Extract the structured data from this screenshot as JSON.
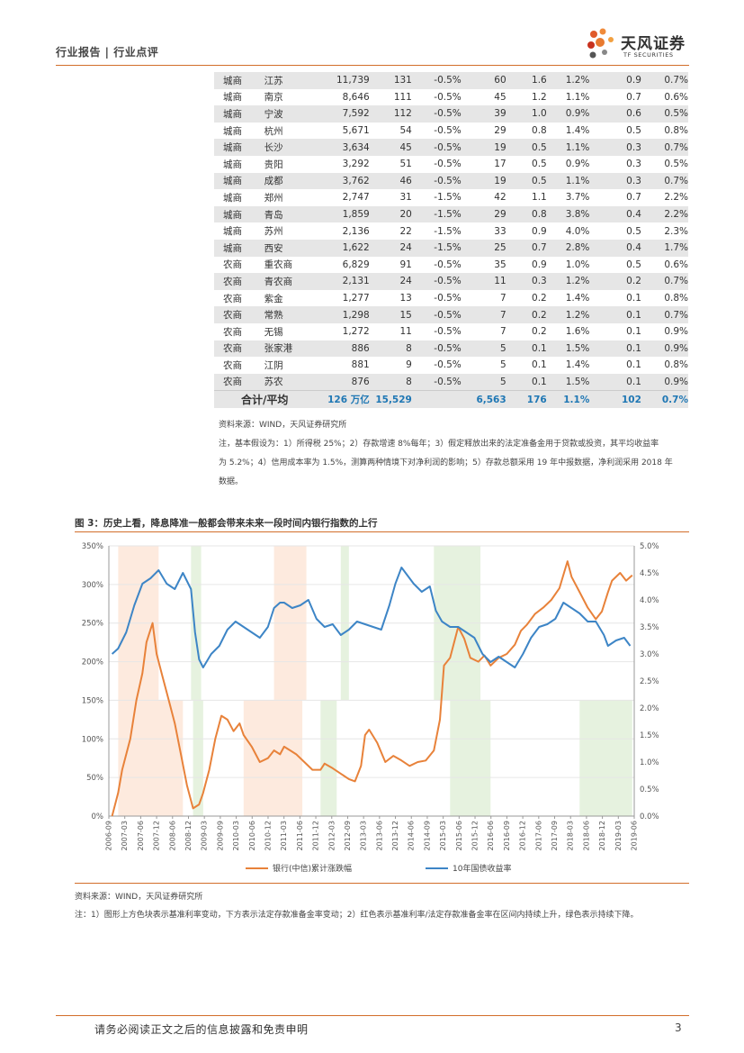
{
  "header": {
    "title": "行业报告 | 行业点评",
    "logo_cn": "天风证券",
    "logo_en": "TF SECURITIES"
  },
  "table": {
    "rows": [
      [
        "城商",
        "江苏",
        "11,739",
        "131",
        "-0.5%",
        "60",
        "1.6",
        "1.2%",
        "0.9",
        "0.7%"
      ],
      [
        "城商",
        "南京",
        "8,646",
        "111",
        "-0.5%",
        "45",
        "1.2",
        "1.1%",
        "0.7",
        "0.6%"
      ],
      [
        "城商",
        "宁波",
        "7,592",
        "112",
        "-0.5%",
        "39",
        "1.0",
        "0.9%",
        "0.6",
        "0.5%"
      ],
      [
        "城商",
        "杭州",
        "5,671",
        "54",
        "-0.5%",
        "29",
        "0.8",
        "1.4%",
        "0.5",
        "0.8%"
      ],
      [
        "城商",
        "长沙",
        "3,634",
        "45",
        "-0.5%",
        "19",
        "0.5",
        "1.1%",
        "0.3",
        "0.7%"
      ],
      [
        "城商",
        "贵阳",
        "3,292",
        "51",
        "-0.5%",
        "17",
        "0.5",
        "0.9%",
        "0.3",
        "0.5%"
      ],
      [
        "城商",
        "成都",
        "3,762",
        "46",
        "-0.5%",
        "19",
        "0.5",
        "1.1%",
        "0.3",
        "0.7%"
      ],
      [
        "城商",
        "郑州",
        "2,747",
        "31",
        "-1.5%",
        "42",
        "1.1",
        "3.7%",
        "0.7",
        "2.2%"
      ],
      [
        "城商",
        "青岛",
        "1,859",
        "20",
        "-1.5%",
        "29",
        "0.8",
        "3.8%",
        "0.4",
        "2.2%"
      ],
      [
        "城商",
        "苏州",
        "2,136",
        "22",
        "-1.5%",
        "33",
        "0.9",
        "4.0%",
        "0.5",
        "2.3%"
      ],
      [
        "城商",
        "西安",
        "1,622",
        "24",
        "-1.5%",
        "25",
        "0.7",
        "2.8%",
        "0.4",
        "1.7%"
      ],
      [
        "农商",
        "重农商",
        "6,829",
        "91",
        "-0.5%",
        "35",
        "0.9",
        "1.0%",
        "0.5",
        "0.6%"
      ],
      [
        "农商",
        "青农商",
        "2,131",
        "24",
        "-0.5%",
        "11",
        "0.3",
        "1.2%",
        "0.2",
        "0.7%"
      ],
      [
        "农商",
        "紫金",
        "1,277",
        "13",
        "-0.5%",
        "7",
        "0.2",
        "1.4%",
        "0.1",
        "0.8%"
      ],
      [
        "农商",
        "常熟",
        "1,298",
        "15",
        "-0.5%",
        "7",
        "0.2",
        "1.2%",
        "0.1",
        "0.7%"
      ],
      [
        "农商",
        "无锡",
        "1,272",
        "11",
        "-0.5%",
        "7",
        "0.2",
        "1.6%",
        "0.1",
        "0.9%"
      ],
      [
        "农商",
        "张家港",
        "886",
        "8",
        "-0.5%",
        "5",
        "0.1",
        "1.5%",
        "0.1",
        "0.9%"
      ],
      [
        "农商",
        "江阴",
        "881",
        "9",
        "-0.5%",
        "5",
        "0.1",
        "1.4%",
        "0.1",
        "0.8%"
      ],
      [
        "农商",
        "苏农",
        "876",
        "8",
        "-0.5%",
        "5",
        "0.1",
        "1.5%",
        "0.1",
        "0.9%"
      ]
    ],
    "total": {
      "label": "合计/平均",
      "c2": "126 万亿",
      "c3": "15,529",
      "c5": "6,563",
      "c6": "176",
      "c7": "1.1%",
      "c8": "102",
      "c9": "0.7%"
    }
  },
  "notes": {
    "source": "资料来源：WIND，天风证券研究所",
    "line1": "注，基本假设为：1）所得税 25%；2）存款增速 8%每年；3）假定释放出来的法定准备金用于贷款或投资，其平均收益率",
    "line2": "为 5.2%；4）信用成本率为 1.5%，测算两种情境下对净利润的影响；5）存款总额采用 19 年中报数据，净利润采用 2018 年",
    "line3": "数据。"
  },
  "figure": {
    "title": "图 3：历史上看，降息降准一般都会带来未来一段时间内银行指数的上行",
    "source": "资料来源：WIND，天风证券研究所",
    "note": "注：1）图形上方色块表示基准利率变动，下方表示法定存款准备金率变动；2）红色表示基准利率/法定存款准备金率在区间内持续上升，绿色表示持续下降。"
  },
  "chart_data": {
    "type": "line",
    "title": "",
    "xlabel": "",
    "ylabel": "",
    "x_ticks": [
      "2006-09",
      "2007-03",
      "2007-09",
      "2008-03",
      "2008-09",
      "2009-03",
      "2009-09",
      "2010-03",
      "2010-09",
      "2011-03",
      "2011-09",
      "2012-03",
      "2012-09",
      "2013-03",
      "2013-09",
      "2014-03",
      "2014-09",
      "2015-03",
      "2015-09",
      "2016-03",
      "2016-09",
      "2017-03",
      "2017-09",
      "2018-03",
      "2018-09",
      "2019-03"
    ],
    "x_ticks_shown": [
      "2006-09",
      "2007-03",
      "2007-06",
      "2007-12",
      "2008-06",
      "2008-12",
      "2009-03",
      "2009-09",
      "2010-03",
      "2010-06",
      "2010-12",
      "2011-03",
      "2011-06",
      "2011-12",
      "2012-03",
      "2012-09",
      "2013-03",
      "2013-06",
      "2013-12",
      "2014-06",
      "2014-09",
      "2015-03",
      "2015-06",
      "2015-12",
      "2016-06",
      "2016-09",
      "2016-12",
      "2017-06",
      "2017-09",
      "2018-03",
      "2018-06",
      "2018-12",
      "2019-03",
      "2019-06"
    ],
    "y_left": {
      "ticks": [
        "0%",
        "50%",
        "100%",
        "150%",
        "200%",
        "250%",
        "300%",
        "350%"
      ],
      "range": [
        0,
        350
      ]
    },
    "y_right": {
      "ticks": [
        "0.0%",
        "0.5%",
        "1.0%",
        "1.5%",
        "2.0%",
        "2.5%",
        "3.0%",
        "3.5%",
        "4.0%",
        "4.5%",
        "5.0%"
      ],
      "range": [
        0,
        5.0
      ]
    },
    "series": [
      {
        "name": "银行(中信)累计涨跌幅",
        "axis": "left",
        "color": "#e8823a",
        "points": [
          [
            2006.75,
            0
          ],
          [
            2006.9,
            30
          ],
          [
            2007.0,
            60
          ],
          [
            2007.2,
            100
          ],
          [
            2007.35,
            150
          ],
          [
            2007.5,
            185
          ],
          [
            2007.6,
            225
          ],
          [
            2007.75,
            250
          ],
          [
            2007.85,
            210
          ],
          [
            2008.0,
            180
          ],
          [
            2008.15,
            150
          ],
          [
            2008.3,
            120
          ],
          [
            2008.45,
            80
          ],
          [
            2008.6,
            40
          ],
          [
            2008.75,
            10
          ],
          [
            2008.9,
            15
          ],
          [
            2009.0,
            30
          ],
          [
            2009.15,
            60
          ],
          [
            2009.3,
            100
          ],
          [
            2009.45,
            130
          ],
          [
            2009.6,
            125
          ],
          [
            2009.75,
            110
          ],
          [
            2009.9,
            120
          ],
          [
            2010.0,
            105
          ],
          [
            2010.2,
            90
          ],
          [
            2010.4,
            70
          ],
          [
            2010.6,
            75
          ],
          [
            2010.75,
            85
          ],
          [
            2010.9,
            80
          ],
          [
            2011.0,
            90
          ],
          [
            2011.15,
            85
          ],
          [
            2011.3,
            80
          ],
          [
            2011.5,
            70
          ],
          [
            2011.7,
            60
          ],
          [
            2011.9,
            60
          ],
          [
            2012.0,
            68
          ],
          [
            2012.2,
            62
          ],
          [
            2012.4,
            55
          ],
          [
            2012.6,
            48
          ],
          [
            2012.75,
            45
          ],
          [
            2012.9,
            65
          ],
          [
            2013.0,
            105
          ],
          [
            2013.1,
            112
          ],
          [
            2013.3,
            95
          ],
          [
            2013.5,
            70
          ],
          [
            2013.7,
            78
          ],
          [
            2013.9,
            72
          ],
          [
            2014.1,
            65
          ],
          [
            2014.3,
            70
          ],
          [
            2014.5,
            72
          ],
          [
            2014.7,
            85
          ],
          [
            2014.85,
            125
          ],
          [
            2014.95,
            195
          ],
          [
            2015.1,
            205
          ],
          [
            2015.3,
            245
          ],
          [
            2015.45,
            230
          ],
          [
            2015.6,
            205
          ],
          [
            2015.8,
            200
          ],
          [
            2015.95,
            208
          ],
          [
            2016.1,
            195
          ],
          [
            2016.3,
            205
          ],
          [
            2016.5,
            210
          ],
          [
            2016.7,
            222
          ],
          [
            2016.85,
            240
          ],
          [
            2017.0,
            248
          ],
          [
            2017.2,
            262
          ],
          [
            2017.4,
            270
          ],
          [
            2017.6,
            280
          ],
          [
            2017.8,
            295
          ],
          [
            2018.0,
            330
          ],
          [
            2018.1,
            310
          ],
          [
            2018.3,
            290
          ],
          [
            2018.5,
            270
          ],
          [
            2018.7,
            255
          ],
          [
            2018.85,
            265
          ],
          [
            2019.0,
            290
          ],
          [
            2019.1,
            305
          ],
          [
            2019.3,
            315
          ],
          [
            2019.45,
            305
          ],
          [
            2019.6,
            312
          ]
        ]
      },
      {
        "name": "10年国债收益率",
        "axis": "right",
        "color": "#3d85c6",
        "points": [
          [
            2006.75,
            3.0
          ],
          [
            2006.9,
            3.1
          ],
          [
            2007.1,
            3.4
          ],
          [
            2007.3,
            3.9
          ],
          [
            2007.5,
            4.3
          ],
          [
            2007.7,
            4.4
          ],
          [
            2007.9,
            4.55
          ],
          [
            2008.1,
            4.3
          ],
          [
            2008.3,
            4.2
          ],
          [
            2008.5,
            4.5
          ],
          [
            2008.7,
            4.2
          ],
          [
            2008.8,
            3.4
          ],
          [
            2008.9,
            2.9
          ],
          [
            2009.0,
            2.75
          ],
          [
            2009.2,
            3.0
          ],
          [
            2009.4,
            3.15
          ],
          [
            2009.6,
            3.45
          ],
          [
            2009.8,
            3.6
          ],
          [
            2010.0,
            3.5
          ],
          [
            2010.2,
            3.4
          ],
          [
            2010.4,
            3.3
          ],
          [
            2010.6,
            3.5
          ],
          [
            2010.75,
            3.85
          ],
          [
            2010.9,
            3.95
          ],
          [
            2011.0,
            3.95
          ],
          [
            2011.2,
            3.85
          ],
          [
            2011.4,
            3.9
          ],
          [
            2011.6,
            4.0
          ],
          [
            2011.8,
            3.65
          ],
          [
            2012.0,
            3.5
          ],
          [
            2012.2,
            3.55
          ],
          [
            2012.4,
            3.35
          ],
          [
            2012.6,
            3.45
          ],
          [
            2012.8,
            3.6
          ],
          [
            2013.0,
            3.55
          ],
          [
            2013.2,
            3.5
          ],
          [
            2013.4,
            3.45
          ],
          [
            2013.6,
            3.9
          ],
          [
            2013.75,
            4.3
          ],
          [
            2013.9,
            4.6
          ],
          [
            2014.0,
            4.5
          ],
          [
            2014.2,
            4.3
          ],
          [
            2014.4,
            4.15
          ],
          [
            2014.6,
            4.25
          ],
          [
            2014.75,
            3.8
          ],
          [
            2014.9,
            3.6
          ],
          [
            2015.1,
            3.5
          ],
          [
            2015.3,
            3.5
          ],
          [
            2015.5,
            3.4
          ],
          [
            2015.7,
            3.3
          ],
          [
            2015.9,
            3.0
          ],
          [
            2016.1,
            2.85
          ],
          [
            2016.3,
            2.95
          ],
          [
            2016.5,
            2.85
          ],
          [
            2016.7,
            2.75
          ],
          [
            2016.9,
            3.0
          ],
          [
            2017.1,
            3.3
          ],
          [
            2017.3,
            3.5
          ],
          [
            2017.5,
            3.55
          ],
          [
            2017.7,
            3.65
          ],
          [
            2017.9,
            3.95
          ],
          [
            2018.1,
            3.85
          ],
          [
            2018.3,
            3.75
          ],
          [
            2018.5,
            3.6
          ],
          [
            2018.7,
            3.6
          ],
          [
            2018.9,
            3.35
          ],
          [
            2019.0,
            3.15
          ],
          [
            2019.2,
            3.25
          ],
          [
            2019.4,
            3.3
          ],
          [
            2019.55,
            3.15
          ]
        ]
      }
    ],
    "shaded_ranges_top_red": [
      [
        2006.9,
        2007.9
      ],
      [
        2010.75,
        2011.55
      ]
    ],
    "shaded_ranges_top_green": [
      [
        2008.7,
        2008.95
      ],
      [
        2012.4,
        2012.6
      ],
      [
        2014.7,
        2015.85
      ]
    ],
    "shaded_ranges_bottom_red": [
      [
        2006.9,
        2008.5
      ],
      [
        2010.0,
        2011.45
      ]
    ],
    "shaded_ranges_bottom_green": [
      [
        2008.75,
        2009.0
      ],
      [
        2011.9,
        2012.3
      ],
      [
        2015.1,
        2016.1
      ],
      [
        2018.3,
        2019.6
      ]
    ],
    "legend": [
      "银行(中信)累计涨跌幅",
      "10年国债收益率"
    ]
  },
  "footer": {
    "disclaimer": "请务必阅读正文之后的信息披露和免责申明",
    "page": "3"
  }
}
